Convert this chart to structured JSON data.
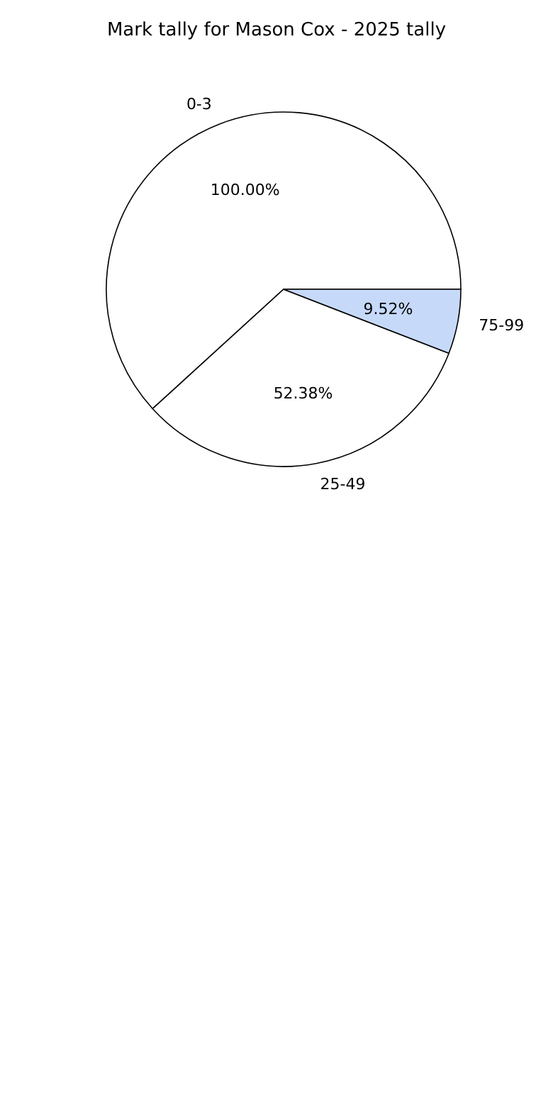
{
  "chart_data": {
    "type": "pie",
    "title": "Mark tally for Mason Cox - 2025 tally",
    "categories": [
      "0-3",
      "25-49",
      "75-99"
    ],
    "values": [
      100,
      52.38,
      9.52
    ],
    "value_labels": [
      "100.00%",
      "52.38%",
      "9.52%"
    ],
    "colors": [
      "#ffffff",
      "#ffffff",
      "#c6d9f8"
    ]
  }
}
